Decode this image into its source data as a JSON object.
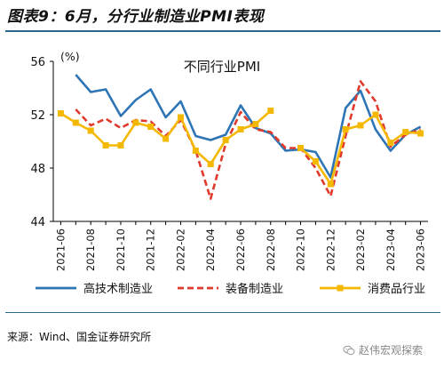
{
  "figure_title": "图表9：6月，分行业制造业PMI表现",
  "source_note": "来源：Wind、国金证券研究所",
  "watermark_text": "赵伟宏观探索",
  "watermark_icon": "wechat-icon",
  "chart_data": {
    "type": "line",
    "title": "不同行业PMI",
    "y_unit": "(%)",
    "ylim": [
      44,
      56
    ],
    "yticks": [
      44,
      48,
      52,
      56
    ],
    "grid": false,
    "legend_position": "bottom",
    "x": [
      "2021-06",
      "2021-07",
      "2021-08",
      "2021-09",
      "2021-10",
      "2021-11",
      "2021-12",
      "2022-01",
      "2022-02",
      "2022-03",
      "2022-04",
      "2022-05",
      "2022-06",
      "2022-07",
      "2022-08",
      "2022-09",
      "2022-10",
      "2022-11",
      "2022-12",
      "2023-01",
      "2023-02",
      "2023-03",
      "2023-04",
      "2023-05",
      "2023-06"
    ],
    "xtick_labels": [
      "2021-06",
      "2021-08",
      "2021-10",
      "2021-12",
      "2022-02",
      "2022-04",
      "2022-06",
      "2022-08",
      "2022-10",
      "2022-12",
      "2023-02",
      "2023-04",
      "2023-06"
    ],
    "series": [
      {
        "name": "高技术制造业",
        "color": "#2e75b6",
        "style": "solid",
        "marker": "none",
        "values": [
          null,
          55.0,
          53.7,
          53.9,
          51.9,
          53.1,
          53.9,
          51.8,
          53.0,
          50.4,
          50.1,
          50.5,
          52.7,
          51.0,
          50.6,
          49.3,
          49.4,
          49.2,
          47.3,
          52.5,
          53.8,
          50.9,
          49.3,
          50.5,
          51.1
        ]
      },
      {
        "name": "装备制造业",
        "color": "#e03a2c",
        "style": "dashed",
        "marker": "none",
        "values": [
          null,
          52.4,
          51.2,
          51.7,
          51.0,
          51.6,
          51.5,
          50.4,
          51.6,
          49.3,
          45.7,
          49.8,
          52.2,
          50.9,
          50.7,
          49.5,
          49.5,
          48.0,
          45.9,
          50.4,
          54.5,
          53.0,
          49.6,
          50.5,
          50.9
        ]
      },
      {
        "name": "消费品行业",
        "color": "#f5b800",
        "style": "solid",
        "marker": "square",
        "values": [
          52.1,
          51.4,
          50.8,
          49.7,
          49.7,
          51.4,
          51.1,
          50.2,
          51.8,
          49.3,
          48.3,
          50.1,
          50.9,
          51.3,
          52.3,
          null,
          49.5,
          48.5,
          46.8,
          50.9,
          51.2,
          52.0,
          49.9,
          50.7,
          50.6
        ]
      }
    ]
  }
}
